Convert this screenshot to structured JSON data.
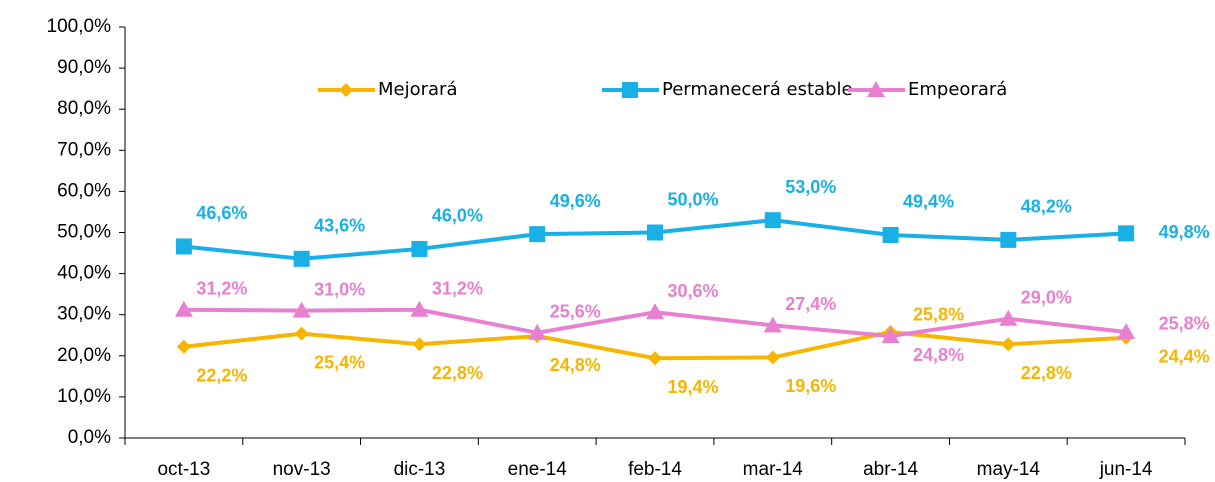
{
  "chart_data": {
    "type": "line",
    "categories": [
      "oct-13",
      "nov-13",
      "dic-13",
      "ene-14",
      "feb-14",
      "mar-14",
      "abr-14",
      "may-14",
      "jun-14"
    ],
    "series": [
      {
        "name": "Mejorará",
        "color": "#f7b500",
        "marker": "diamond",
        "values": [
          22.2,
          25.4,
          22.8,
          24.8,
          19.4,
          19.6,
          25.8,
          22.8,
          24.4
        ],
        "value_labels": [
          "22,2%",
          "25,4%",
          "22,8%",
          "24,8%",
          "19,4%",
          "19,6%",
          "25,8%",
          "22,8%",
          "24,4%"
        ]
      },
      {
        "name": "Permanecerá estable",
        "color": "#19b0e6",
        "marker": "square",
        "values": [
          46.6,
          43.6,
          46.0,
          49.6,
          50.0,
          53.0,
          49.4,
          48.2,
          49.8
        ],
        "value_labels": [
          "46,6%",
          "43,6%",
          "46,0%",
          "49,6%",
          "50,0%",
          "53,0%",
          "49,4%",
          "48,2%",
          "49,8%"
        ]
      },
      {
        "name": "Empeorará",
        "color": "#e87fd0",
        "marker": "triangle",
        "values": [
          31.2,
          31.0,
          31.2,
          25.6,
          30.6,
          27.4,
          24.8,
          29.0,
          25.8
        ],
        "value_labels": [
          "31,2%",
          "31,0%",
          "31,2%",
          "25,6%",
          "30,6%",
          "27,4%",
          "24,8%",
          "29,0%",
          "25,8%"
        ]
      }
    ],
    "ylim": [
      0,
      100
    ],
    "yticks": [
      {
        "value": 0,
        "label": "0,0%"
      },
      {
        "value": 10,
        "label": "10,0%"
      },
      {
        "value": 20,
        "label": "20,0%"
      },
      {
        "value": 30,
        "label": "30,0%"
      },
      {
        "value": 40,
        "label": "40,0%"
      },
      {
        "value": 50,
        "label": "50,0%"
      },
      {
        "value": 60,
        "label": "60,0%"
      },
      {
        "value": 70,
        "label": "70,0%"
      },
      {
        "value": 80,
        "label": "80,0%"
      },
      {
        "value": 90,
        "label": "90,0%"
      },
      {
        "value": 100,
        "label": "100,0%"
      }
    ],
    "legend": "top"
  }
}
